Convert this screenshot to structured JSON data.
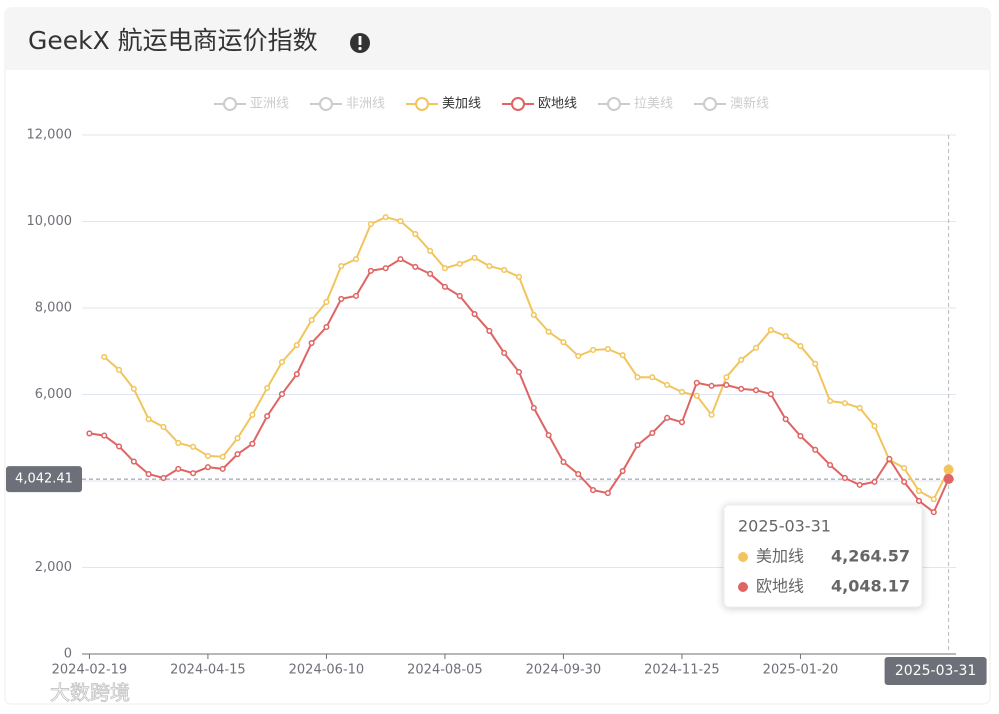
{
  "header": {
    "title": "GeekX 航运电商运价指数"
  },
  "chart_data": {
    "type": "line",
    "legend": {
      "items": [
        {
          "name": "亚洲线",
          "selected": false
        },
        {
          "name": "非洲线",
          "selected": false
        },
        {
          "name": "美加线",
          "selected": true,
          "color": "#f2c55c"
        },
        {
          "name": "欧地线",
          "selected": true,
          "color": "#e06464"
        },
        {
          "name": "拉美线",
          "selected": false
        },
        {
          "name": "澳新线",
          "selected": false
        }
      ]
    },
    "categories": [
      "2024-02-19",
      null,
      null,
      null,
      null,
      null,
      null,
      null,
      "2024-04-15",
      null,
      null,
      null,
      null,
      null,
      null,
      null,
      "2024-06-10",
      null,
      null,
      null,
      null,
      null,
      null,
      null,
      "2024-08-05",
      null,
      null,
      null,
      null,
      null,
      null,
      null,
      "2024-09-30",
      null,
      null,
      null,
      null,
      null,
      null,
      null,
      "2024-11-25",
      null,
      null,
      null,
      null,
      null,
      null,
      null,
      "2025-01-20",
      null,
      null,
      null,
      null,
      null,
      null,
      null,
      null,
      null,
      "2025-03-31"
    ],
    "series": [
      {
        "name": "美加线",
        "color": "#f2c55c",
        "values": [
          null,
          6870,
          6570,
          6130,
          5430,
          5250,
          4880,
          4790,
          4580,
          4560,
          4990,
          5530,
          6150,
          6750,
          7140,
          7720,
          8140,
          8970,
          9130,
          9940,
          10100,
          10010,
          9710,
          9320,
          8920,
          9020,
          9160,
          8970,
          8880,
          8720,
          7840,
          7450,
          7210,
          6890,
          7030,
          7050,
          6910,
          6400,
          6400,
          6220,
          6060,
          5970,
          5530,
          6400,
          6800,
          7080,
          7490,
          7350,
          7120,
          6710,
          5850,
          5800,
          5690,
          5270,
          4490,
          4300,
          3770,
          3580,
          4264.57
        ]
      },
      {
        "name": "欧地线",
        "color": "#e06464",
        "values": [
          5100,
          5050,
          4800,
          4450,
          4160,
          4070,
          4280,
          4180,
          4320,
          4280,
          4620,
          4860,
          5500,
          6010,
          6470,
          7190,
          7560,
          8210,
          8280,
          8860,
          8920,
          9130,
          8950,
          8790,
          8490,
          8280,
          7860,
          7470,
          6960,
          6520,
          5690,
          5060,
          4440,
          4160,
          3790,
          3720,
          4230,
          4830,
          5110,
          5460,
          5360,
          6270,
          6200,
          6220,
          6130,
          6100,
          6010,
          5430,
          5040,
          4720,
          4370,
          4070,
          3910,
          3980,
          4510,
          3980,
          3540,
          3280,
          4048.17
        ]
      }
    ],
    "ylim": [
      0,
      12000
    ],
    "yticks": [
      0,
      {
        "value": 2000,
        "label": "2,000"
      },
      {
        "value": 4000,
        "label": "4,000"
      },
      {
        "value": 6000,
        "label": "6,000"
      },
      {
        "value": 8000,
        "label": "8,000"
      },
      {
        "value": 10000,
        "label": "10,000"
      },
      {
        "value": 12000,
        "label": "12,000"
      }
    ],
    "grid": true,
    "crosshair_y": {
      "value": 4042.41,
      "label": "4,042.41"
    },
    "tooltip": {
      "index": 58,
      "value_labels": [
        "4,264.57",
        "4,048.17"
      ]
    },
    "watermark": "大数跨境"
  }
}
